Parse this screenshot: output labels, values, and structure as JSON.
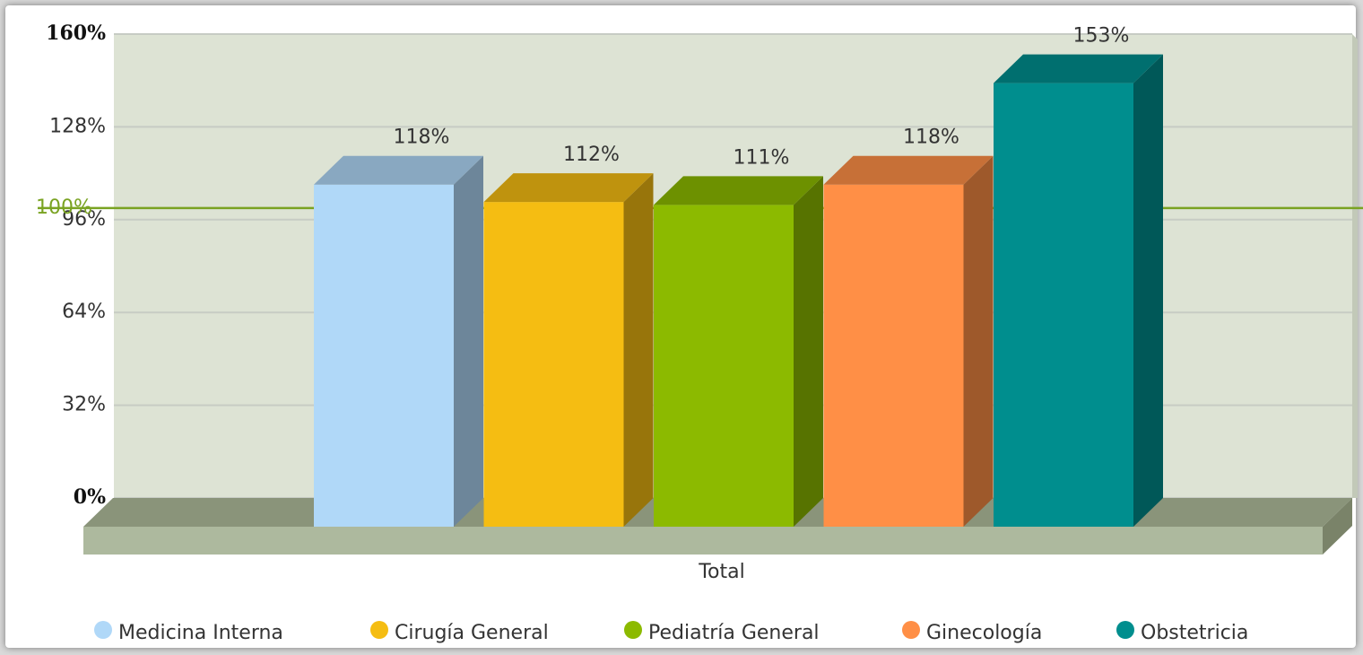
{
  "chart_data": {
    "type": "bar3d",
    "categories": [
      "Total"
    ],
    "series": [
      {
        "name": "Medicina Interna",
        "color": "#b0d8f8",
        "values": [
          118
        ],
        "value_labels": [
          "118%"
        ]
      },
      {
        "name": "Cirugía General",
        "color": "#f5bd12",
        "values": [
          112
        ],
        "value_labels": [
          "112%"
        ]
      },
      {
        "name": "Pediatría General",
        "color": "#8cba00",
        "values": [
          111
        ],
        "value_labels": [
          "111%"
        ]
      },
      {
        "name": "Ginecología",
        "color": "#ff8f46",
        "values": [
          118
        ],
        "value_labels": [
          "118%"
        ]
      },
      {
        "name": "Obstetricia",
        "color": "#008e8e",
        "values": [
          153
        ],
        "value_labels": [
          "153%"
        ]
      }
    ],
    "ylim": [
      0,
      160
    ],
    "yticks": [
      {
        "value": 0,
        "label": "0%"
      },
      {
        "value": 32,
        "label": "32%"
      },
      {
        "value": 64,
        "label": "64%"
      },
      {
        "value": 96,
        "label": "96%"
      },
      {
        "value": 128,
        "label": "128%"
      },
      {
        "value": 160,
        "label": "160%"
      }
    ],
    "reference_line": {
      "value": 100,
      "label": "100%",
      "color": "#7aa322"
    },
    "grid": true,
    "legend": "bottom"
  }
}
